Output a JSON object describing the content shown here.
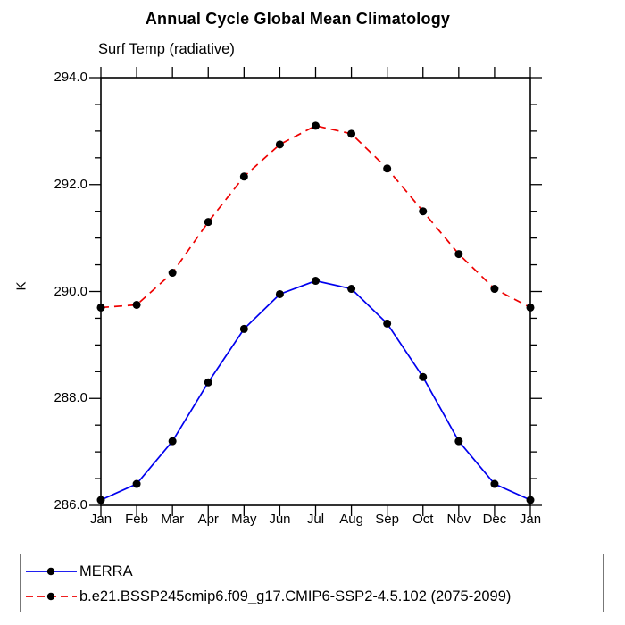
{
  "title": "Annual Cycle Global Mean Climatology",
  "subtitle": "Surf Temp (radiative)",
  "y_axis_label": "K",
  "chart_data": {
    "type": "line",
    "categories": [
      "Jan",
      "Feb",
      "Mar",
      "Apr",
      "May",
      "Jun",
      "Jul",
      "Aug",
      "Sep",
      "Oct",
      "Nov",
      "Dec",
      "Jan"
    ],
    "series": [
      {
        "name": "MERRA",
        "color": "#0000ee",
        "line_style": "solid",
        "marker": "filled-circle",
        "marker_color": "#000000",
        "values": [
          286.1,
          286.4,
          287.2,
          288.3,
          289.3,
          289.95,
          290.2,
          290.05,
          289.4,
          288.4,
          287.2,
          286.4,
          286.1
        ]
      },
      {
        "name": "b.e21.BSSP245cmip6.f09_g17.CMIP6-SSP2-4.5.102 (2075-2099)",
        "color": "#ee0000",
        "line_style": "dashed",
        "marker": "filled-circle",
        "marker_color": "#000000",
        "values": [
          289.7,
          289.75,
          290.35,
          291.3,
          292.15,
          292.75,
          293.1,
          292.95,
          292.3,
          291.5,
          290.7,
          290.05,
          289.7
        ]
      }
    ],
    "title": "Annual Cycle Global Mean Climatology",
    "xlabel": "",
    "ylabel": "K",
    "ylim": [
      286.0,
      294.0
    ],
    "y_major_ticks": [
      294.0,
      292.0,
      290.0,
      288.0,
      286.0
    ],
    "y_tick_labels": [
      "294.0",
      "292.0",
      "290.0",
      "288.0",
      "286.0"
    ],
    "y_minor_interval": 0.5,
    "grid": false,
    "legend_position": "bottom"
  },
  "legend": {
    "items": [
      {
        "label": "MERRA",
        "line_color": "#0000ee",
        "line_style": "solid",
        "marker": "filled-circle"
      },
      {
        "label": "b.e21.BSSP245cmip6.f09_g17.CMIP6-SSP2-4.5.102 (2075-2099)",
        "line_color": "#ee0000",
        "line_style": "dashed",
        "marker": "filled-circle"
      }
    ]
  },
  "colors": {
    "axis": "#000000",
    "text": "#000000",
    "merra_line": "#0000ee",
    "model_line": "#ee0000",
    "marker": "#000000",
    "legend_border": "#777777"
  }
}
